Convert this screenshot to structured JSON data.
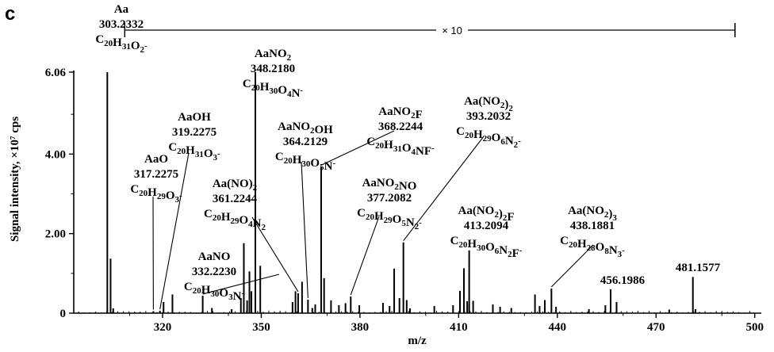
{
  "chart_data": {
    "type": "bar",
    "panel_label": "c",
    "xlabel": "m/z",
    "ylabel": "Signal intensity, ×10⁷ cps",
    "xlim": [
      293,
      502
    ],
    "ylim": [
      0,
      6.06
    ],
    "x_ticks": [
      {
        "value": 320,
        "label": "320"
      },
      {
        "value": 350,
        "label": "350"
      },
      {
        "value": 380,
        "label": "380"
      },
      {
        "value": 410,
        "label": "410"
      },
      {
        "value": 440,
        "label": "440"
      },
      {
        "value": 470,
        "label": "470"
      },
      {
        "value": 500,
        "label": "500"
      }
    ],
    "y_ticks": [
      {
        "value": 0,
        "label": "0"
      },
      {
        "value": 2.0,
        "label": "2.00"
      },
      {
        "value": 4.0,
        "label": "4.00"
      },
      {
        "value": 6.06,
        "label": "6.06"
      }
    ],
    "zoom": {
      "label": "× 10",
      "x_start": 308.5,
      "x_end": 494
    },
    "peaks": [
      {
        "x": 303.2,
        "y": 6.06
      },
      {
        "x": 304.2,
        "y": 1.37
      },
      {
        "x": 305.0,
        "y": 0.12
      },
      {
        "x": 317.2,
        "y": 0.05
      },
      {
        "x": 319.2,
        "y": 0.06
      },
      {
        "x": 320.3,
        "y": 0.28
      },
      {
        "x": 323.0,
        "y": 0.47
      },
      {
        "x": 332.2,
        "y": 0.44
      },
      {
        "x": 335.0,
        "y": 0.13
      },
      {
        "x": 341.0,
        "y": 0.1
      },
      {
        "x": 343.8,
        "y": 0.38
      },
      {
        "x": 344.7,
        "y": 1.76
      },
      {
        "x": 345.7,
        "y": 0.32
      },
      {
        "x": 346.4,
        "y": 1.05
      },
      {
        "x": 347.0,
        "y": 0.55
      },
      {
        "x": 348.2,
        "y": 6.06
      },
      {
        "x": 349.7,
        "y": 1.19
      },
      {
        "x": 359.5,
        "y": 0.28
      },
      {
        "x": 360.4,
        "y": 0.55
      },
      {
        "x": 361.2,
        "y": 0.5
      },
      {
        "x": 362.4,
        "y": 0.79
      },
      {
        "x": 364.2,
        "y": 0.34
      },
      {
        "x": 365.5,
        "y": 0.13
      },
      {
        "x": 366.4,
        "y": 0.22
      },
      {
        "x": 368.2,
        "y": 3.68
      },
      {
        "x": 369.1,
        "y": 0.88
      },
      {
        "x": 371.2,
        "y": 0.32
      },
      {
        "x": 373.6,
        "y": 0.2
      },
      {
        "x": 375.6,
        "y": 0.25
      },
      {
        "x": 377.2,
        "y": 0.42
      },
      {
        "x": 379.8,
        "y": 0.2
      },
      {
        "x": 387.0,
        "y": 0.26
      },
      {
        "x": 389.0,
        "y": 0.18
      },
      {
        "x": 390.4,
        "y": 1.12
      },
      {
        "x": 392.0,
        "y": 0.38
      },
      {
        "x": 393.2,
        "y": 1.78
      },
      {
        "x": 394.2,
        "y": 0.33
      },
      {
        "x": 395.2,
        "y": 0.12
      },
      {
        "x": 402.6,
        "y": 0.18
      },
      {
        "x": 408.3,
        "y": 0.2
      },
      {
        "x": 410.4,
        "y": 0.56
      },
      {
        "x": 411.6,
        "y": 1.13
      },
      {
        "x": 412.6,
        "y": 0.3
      },
      {
        "x": 413.2,
        "y": 1.58
      },
      {
        "x": 414.4,
        "y": 0.31
      },
      {
        "x": 420.4,
        "y": 0.22
      },
      {
        "x": 422.6,
        "y": 0.16
      },
      {
        "x": 426.0,
        "y": 0.13
      },
      {
        "x": 433.2,
        "y": 0.47
      },
      {
        "x": 434.6,
        "y": 0.18
      },
      {
        "x": 436.2,
        "y": 0.33
      },
      {
        "x": 438.2,
        "y": 0.62
      },
      {
        "x": 439.6,
        "y": 0.16
      },
      {
        "x": 449.6,
        "y": 0.1
      },
      {
        "x": 454.6,
        "y": 0.2
      },
      {
        "x": 456.2,
        "y": 0.6
      },
      {
        "x": 458.0,
        "y": 0.28
      },
      {
        "x": 474.0,
        "y": 0.09
      },
      {
        "x": 481.2,
        "y": 0.91
      },
      {
        "x": 482.0,
        "y": 0.1
      }
    ],
    "annotations": [
      {
        "name": "Aa",
        "mass": "303.2332",
        "formula": [
          [
            "C",
            "20",
            "H",
            "31",
            "O",
            "2",
            "",
            "-"
          ]
        ],
        "peak_x": 303.2,
        "peak_y": 6.06
      },
      {
        "name": "AaNO2",
        "mass": "348.2180",
        "formula": "C20H30O4N-",
        "peak_x": 348.2,
        "peak_y": 6.06
      },
      {
        "name": "AaO",
        "mass": "317.2275",
        "formula": "C20H29O3-",
        "peak_x": 317.2,
        "peak_y": 0.05
      },
      {
        "name": "AaOH",
        "mass": "319.2275",
        "formula": "C20H31O3-",
        "peak_x": 319.2,
        "peak_y": 0.06
      },
      {
        "name": "Aa(NO)2",
        "mass": "361.2244",
        "formula": "C20H29O4N2",
        "peak_x": 361.2,
        "peak_y": 0.5
      },
      {
        "name": "AaNO",
        "mass": "332.2230",
        "formula": "C20H30O3N-",
        "peak_x": 332.2,
        "peak_y": 0.44
      },
      {
        "name": "AaNO2OH",
        "mass": "364.2129",
        "formula": "C20H30O5N-",
        "peak_x": 364.2,
        "peak_y": 0.34
      },
      {
        "name": "AaNO2F",
        "mass": "368.2244",
        "formula": "C20H31O4NF-",
        "peak_x": 368.2,
        "peak_y": 3.68
      },
      {
        "name": "AaNO2NO",
        "mass": "377.2082",
        "formula": "C20H29O5N2-",
        "peak_x": 377.2,
        "peak_y": 0.42
      },
      {
        "name": "Aa(NO2)2",
        "mass": "393.2032",
        "formula": "C20H29O6N2-",
        "peak_x": 393.2,
        "peak_y": 1.78
      },
      {
        "name": "Aa(NO2)2F",
        "mass": "413.2094",
        "formula": "C20H30O6N2F-",
        "peak_x": 413.2,
        "peak_y": 1.58
      },
      {
        "name": "Aa(NO2)3",
        "mass": "438.1881",
        "formula": "C20H28O8N3-",
        "peak_x": 438.2,
        "peak_y": 0.62
      },
      {
        "name": "",
        "mass": "456.1986",
        "formula": "",
        "peak_x": 456.2,
        "peak_y": 0.6
      },
      {
        "name": "",
        "mass": "481.1577",
        "formula": "",
        "peak_x": 481.2,
        "peak_y": 0.91
      }
    ]
  }
}
